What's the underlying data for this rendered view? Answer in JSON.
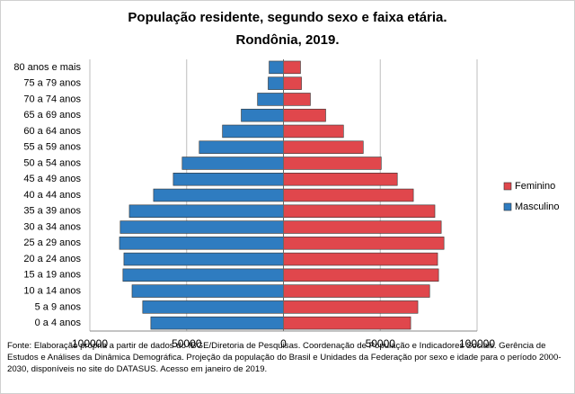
{
  "chart_data": {
    "type": "pyramid",
    "title": "População residente, segundo sexo e faixa etária.",
    "subtitle": "Rondônia, 2019.",
    "categories": [
      "0 a 4 anos",
      "5 a 9 anos",
      "10 a 14 anos",
      "15 a 19 anos",
      "20 a 24 anos",
      "25 a 29 anos",
      "30 a 34 anos",
      "35 a 39 anos",
      "40 a 44 anos",
      "45 a 49 anos",
      "50 a 54 anos",
      "55 a 59 anos",
      "60 a 64 anos",
      "65 a 69 anos",
      "70 a 74 anos",
      "75 a 79 anos",
      "80 anos e mais"
    ],
    "series": [
      {
        "name": "Feminino",
        "color": "#e0474c",
        "values": [
          65700,
          69400,
          75500,
          80100,
          79600,
          82900,
          81500,
          78200,
          67100,
          58800,
          50500,
          41200,
          31000,
          21800,
          13900,
          9300,
          8800
        ]
      },
      {
        "name": "Masculino",
        "color": "#2f7cc0",
        "values": [
          -68500,
          -72700,
          -78200,
          -82900,
          -82400,
          -84700,
          -84300,
          -79600,
          -67100,
          -56900,
          -52300,
          -43500,
          -31500,
          -21800,
          -13400,
          -7900,
          -7400
        ]
      }
    ],
    "xlim": [
      -100000,
      100000
    ],
    "xticks": [
      {
        "value": -100000,
        "label": "100000"
      },
      {
        "value": -50000,
        "label": "50000"
      },
      0,
      50000,
      100000
    ],
    "grid": true,
    "legend": "right",
    "source": "Fonte:  Elaboração própria a partir de dados  do  IBGE/Diretoria de Pesquisas. Coordenação de População e Indicadores Sociais. Gerência de Estudos e Análises da Dinâmica Demográfica. Projeção da população do Brasil e Unidades da Federação por sexo e idade para o período 2000-2030, disponíveis no site do DATASUS. Acesso em  janeiro de 2019."
  }
}
